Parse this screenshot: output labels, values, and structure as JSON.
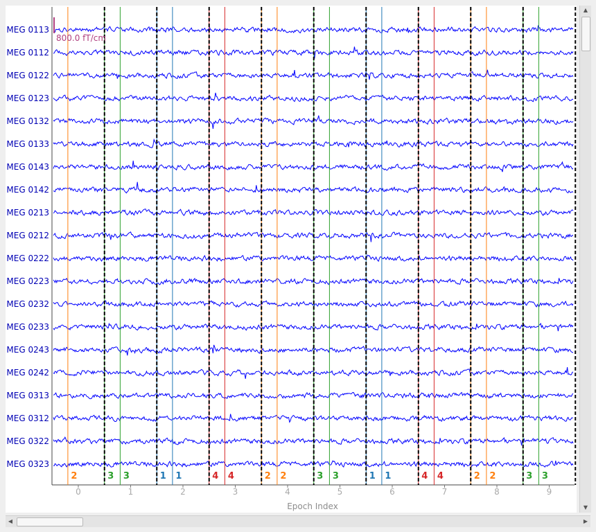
{
  "chart_data": {
    "type": "line",
    "xlabel": "Epoch Index",
    "x_ticks": [
      "0",
      "1",
      "2",
      "3",
      "4",
      "5",
      "6",
      "7",
      "8",
      "9"
    ],
    "channels": [
      "MEG 0113",
      "MEG 0112",
      "MEG 0122",
      "MEG 0123",
      "MEG 0132",
      "MEG 0133",
      "MEG 0143",
      "MEG 0142",
      "MEG 0213",
      "MEG 0212",
      "MEG 0222",
      "MEG 0223",
      "MEG 0232",
      "MEG 0233",
      "MEG 0243",
      "MEG 0242",
      "MEG 0313",
      "MEG 0312",
      "MEG 0322",
      "MEG 0323"
    ],
    "trace_color": "#0000ff",
    "scale_bar": {
      "label": "800.0 fT/cm",
      "color": "#b0407f"
    },
    "epoch_boundaries": [
      0.5,
      1.5,
      2.5,
      3.5,
      4.5,
      5.5,
      6.5,
      7.5,
      8.5,
      9.5
    ],
    "events": [
      {
        "epoch_pos": -0.2,
        "label": "2",
        "color": "#ff7f0e"
      },
      {
        "epoch_pos": 0.5,
        "label": "3",
        "color": "#2ca02c"
      },
      {
        "epoch_pos": 0.8,
        "label": "3",
        "color": "#2ca02c"
      },
      {
        "epoch_pos": 1.5,
        "label": "1",
        "color": "#1f77b4"
      },
      {
        "epoch_pos": 1.8,
        "label": "1",
        "color": "#1f77b4"
      },
      {
        "epoch_pos": 2.5,
        "label": "4",
        "color": "#d62728"
      },
      {
        "epoch_pos": 2.8,
        "label": "4",
        "color": "#d62728"
      },
      {
        "epoch_pos": 3.5,
        "label": "2",
        "color": "#ff7f0e"
      },
      {
        "epoch_pos": 3.8,
        "label": "2",
        "color": "#ff7f0e"
      },
      {
        "epoch_pos": 4.5,
        "label": "3",
        "color": "#2ca02c"
      },
      {
        "epoch_pos": 4.8,
        "label": "3",
        "color": "#2ca02c"
      },
      {
        "epoch_pos": 5.5,
        "label": "1",
        "color": "#1f77b4"
      },
      {
        "epoch_pos": 5.8,
        "label": "1",
        "color": "#1f77b4"
      },
      {
        "epoch_pos": 6.5,
        "label": "4",
        "color": "#d62728"
      },
      {
        "epoch_pos": 6.8,
        "label": "4",
        "color": "#d62728"
      },
      {
        "epoch_pos": 7.5,
        "label": "2",
        "color": "#ff7f0e"
      },
      {
        "epoch_pos": 7.8,
        "label": "2",
        "color": "#ff7f0e"
      },
      {
        "epoch_pos": 8.5,
        "label": "3",
        "color": "#2ca02c"
      },
      {
        "epoch_pos": 8.8,
        "label": "3",
        "color": "#2ca02c"
      }
    ]
  }
}
